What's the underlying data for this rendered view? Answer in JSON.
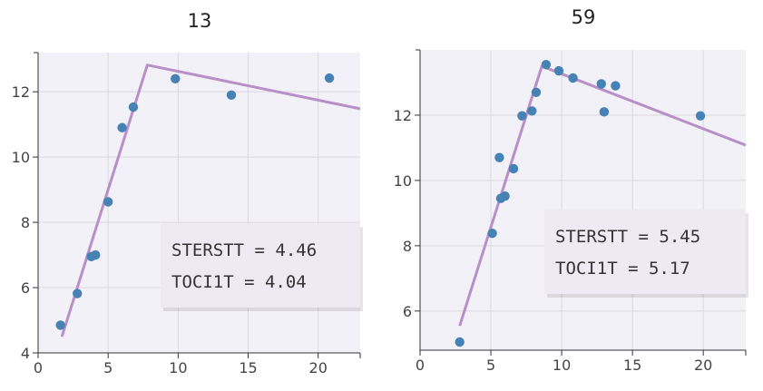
{
  "chart_data": [
    {
      "type": "scatter",
      "title": "13",
      "xlabel": "",
      "ylabel": "",
      "xlim": [
        0,
        23
      ],
      "ylim": [
        4,
        13.2
      ],
      "x_ticks": [
        0,
        5,
        10,
        15,
        20
      ],
      "y_ticks": [
        4,
        6,
        8,
        10,
        12
      ],
      "grid": true,
      "point_color": "#4682b4",
      "line_color": "#b88fc9",
      "points": [
        {
          "x": 1.6,
          "y": 4.85
        },
        {
          "x": 2.8,
          "y": 5.82
        },
        {
          "x": 3.8,
          "y": 6.95
        },
        {
          "x": 4.1,
          "y": 7.0
        },
        {
          "x": 5.0,
          "y": 8.63
        },
        {
          "x": 6.0,
          "y": 10.9
        },
        {
          "x": 6.8,
          "y": 11.53
        },
        {
          "x": 9.8,
          "y": 12.4
        },
        {
          "x": 13.8,
          "y": 11.9
        },
        {
          "x": 20.8,
          "y": 12.42
        }
      ],
      "fit_line": [
        {
          "x": 1.7,
          "y": 4.5
        },
        {
          "x": 7.8,
          "y": 12.82
        },
        {
          "x": 23.0,
          "y": 11.48
        }
      ],
      "annotation": [
        "STERSTT = 4.46",
        "TOCI1T = 4.04"
      ]
    },
    {
      "type": "scatter",
      "title": "59",
      "xlabel": "",
      "ylabel": "",
      "xlim": [
        0,
        23
      ],
      "ylim": [
        4.8,
        14
      ],
      "x_ticks": [
        0,
        5,
        10,
        15,
        20
      ],
      "y_ticks": [
        6,
        8,
        10,
        12
      ],
      "grid": true,
      "point_color": "#4682b4",
      "line_color": "#b88fc9",
      "points": [
        {
          "x": 2.8,
          "y": 5.05
        },
        {
          "x": 5.1,
          "y": 8.38
        },
        {
          "x": 5.6,
          "y": 10.7
        },
        {
          "x": 5.7,
          "y": 9.45
        },
        {
          "x": 6.0,
          "y": 9.52
        },
        {
          "x": 6.6,
          "y": 10.36
        },
        {
          "x": 7.2,
          "y": 11.98
        },
        {
          "x": 7.9,
          "y": 12.13
        },
        {
          "x": 8.2,
          "y": 12.7
        },
        {
          "x": 8.9,
          "y": 13.55
        },
        {
          "x": 9.8,
          "y": 13.36
        },
        {
          "x": 10.8,
          "y": 13.14
        },
        {
          "x": 12.8,
          "y": 12.96
        },
        {
          "x": 13.0,
          "y": 12.1
        },
        {
          "x": 13.8,
          "y": 12.9
        },
        {
          "x": 19.8,
          "y": 11.98
        }
      ],
      "fit_line": [
        {
          "x": 2.8,
          "y": 5.55
        },
        {
          "x": 8.6,
          "y": 13.5
        },
        {
          "x": 23.0,
          "y": 11.08
        }
      ],
      "annotation": [
        "STERSTT = 5.45",
        "TOCI1T = 5.17"
      ]
    }
  ]
}
